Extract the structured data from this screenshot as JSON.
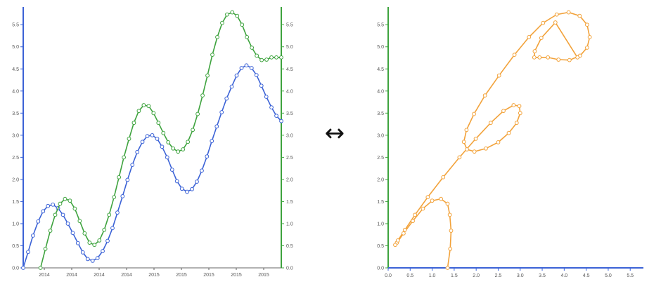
{
  "colors": {
    "blue": "#3b62d6",
    "green": "#3ea33e",
    "orange": "#f2a23a",
    "tick_text": "#555555",
    "marker_fill": "#ffffff",
    "arrow": "#111111"
  },
  "arrow_glyph": "↔",
  "chart_data": [
    {
      "type": "line",
      "left_axis": {
        "color": "blue",
        "ticks": [
          "0.0",
          "0.5",
          "1.0",
          "1.5",
          "2.0",
          "2.5",
          "3.0",
          "3.5",
          "4.0",
          "4.5",
          "5.0",
          "5.5"
        ],
        "ylim": [
          0,
          5.9
        ]
      },
      "right_axis": {
        "color": "green",
        "ticks": [
          "0.0",
          "0.5",
          "1.0",
          "1.5",
          "2.0",
          "2.5",
          "3.0",
          "3.5",
          "4.0",
          "4.5",
          "5.0",
          "5.5"
        ],
        "ylim": [
          0,
          5.9
        ]
      },
      "x_tick_labels": [
        "2014",
        "2014",
        "2014",
        "2014",
        "2015",
        "2015",
        "2015",
        "2015",
        "2015"
      ],
      "xlim": [
        0,
        10
      ],
      "markers": "hollow-circle",
      "series": [
        {
          "color": "blue",
          "axis": "left",
          "x": [
            0.0,
            0.19,
            0.38,
            0.58,
            0.77,
            0.96,
            1.15,
            1.35,
            1.54,
            1.73,
            1.92,
            2.12,
            2.31,
            2.5,
            2.69,
            2.88,
            3.08,
            3.27,
            3.46,
            3.65,
            3.85,
            4.04,
            4.23,
            4.42,
            4.62,
            4.81,
            5.0,
            5.19,
            5.38,
            5.58,
            5.77,
            5.96,
            6.15,
            6.35,
            6.54,
            6.73,
            6.92,
            7.12,
            7.31,
            7.5,
            7.69,
            7.88,
            8.08,
            8.27,
            8.46,
            8.65,
            8.85,
            9.04,
            9.23,
            9.42,
            9.62,
            9.81,
            10.0
          ],
          "y": [
            0.0,
            0.36,
            0.73,
            1.05,
            1.28,
            1.4,
            1.43,
            1.35,
            1.2,
            1.0,
            0.79,
            0.56,
            0.35,
            0.2,
            0.16,
            0.22,
            0.38,
            0.61,
            0.9,
            1.25,
            1.62,
            1.99,
            2.33,
            2.62,
            2.85,
            2.98,
            3.0,
            2.92,
            2.74,
            2.5,
            2.22,
            1.96,
            1.79,
            1.72,
            1.78,
            1.95,
            2.2,
            2.52,
            2.87,
            3.2,
            3.52,
            3.83,
            4.1,
            4.35,
            4.52,
            4.58,
            4.52,
            4.36,
            4.12,
            3.87,
            3.63,
            3.44,
            3.32
          ]
        },
        {
          "color": "green",
          "axis": "right",
          "x": [
            0.67,
            0.86,
            1.05,
            1.24,
            1.43,
            1.62,
            1.81,
            2.0,
            2.19,
            2.38,
            2.57,
            2.76,
            2.95,
            3.14,
            3.33,
            3.52,
            3.71,
            3.9,
            4.1,
            4.29,
            4.48,
            4.67,
            4.86,
            5.05,
            5.24,
            5.43,
            5.62,
            5.81,
            6.0,
            6.19,
            6.38,
            6.57,
            6.76,
            6.95,
            7.14,
            7.33,
            7.52,
            7.71,
            7.9,
            8.1,
            8.29,
            8.48,
            8.67,
            8.86,
            9.05,
            9.24,
            9.43,
            9.62,
            9.81,
            10.0
          ],
          "y": [
            0.0,
            0.43,
            0.84,
            1.2,
            1.45,
            1.56,
            1.52,
            1.34,
            1.06,
            0.78,
            0.57,
            0.52,
            0.62,
            0.86,
            1.2,
            1.6,
            2.05,
            2.5,
            2.92,
            3.28,
            3.55,
            3.68,
            3.66,
            3.5,
            3.28,
            3.05,
            2.84,
            2.7,
            2.63,
            2.68,
            2.85,
            3.12,
            3.48,
            3.9,
            4.35,
            4.82,
            5.22,
            5.54,
            5.73,
            5.78,
            5.7,
            5.5,
            5.22,
            4.98,
            4.8,
            4.7,
            4.71,
            4.76,
            4.76,
            4.76
          ]
        }
      ]
    },
    {
      "type": "line",
      "xlim": [
        0,
        5.8
      ],
      "ylim": [
        0,
        5.9
      ],
      "x_ticks": [
        "0.0",
        "0.5",
        "1.0",
        "1.5",
        "2.0",
        "2.5",
        "3.0",
        "3.5",
        "4.0",
        "4.5",
        "5.0",
        "5.5"
      ],
      "y_ticks": [
        "0.0",
        "0.5",
        "1.0",
        "1.5",
        "2.0",
        "2.5",
        "3.0",
        "3.5",
        "4.0",
        "4.5",
        "5.0",
        "5.5"
      ],
      "x_axis_color": "blue",
      "y_axis_color": "green",
      "markers": "hollow-circle",
      "series": [
        {
          "color": "orange",
          "x": [
            1.35,
            1.41,
            1.43,
            1.4,
            1.35,
            1.2,
            1.0,
            0.79,
            0.56,
            0.35,
            0.2,
            0.16,
            0.22,
            0.38,
            0.61,
            0.9,
            1.25,
            1.62,
            1.99,
            2.33,
            2.62,
            2.85,
            2.98,
            3.0,
            2.92,
            2.74,
            2.5,
            2.22,
            1.96,
            1.79,
            1.72,
            1.78,
            1.95,
            2.2,
            2.52,
            2.87,
            3.2,
            3.52,
            3.83,
            4.1,
            4.35,
            4.52,
            4.58,
            4.52,
            4.36,
            4.12,
            3.87,
            3.63,
            3.44,
            3.32,
            3.33,
            3.48,
            3.8,
            4.3
          ],
          "y": [
            0.0,
            0.43,
            0.84,
            1.2,
            1.45,
            1.56,
            1.52,
            1.34,
            1.06,
            0.78,
            0.57,
            0.52,
            0.62,
            0.86,
            1.2,
            1.6,
            2.05,
            2.5,
            2.92,
            3.28,
            3.55,
            3.68,
            3.66,
            3.5,
            3.28,
            3.05,
            2.84,
            2.7,
            2.63,
            2.68,
            2.85,
            3.12,
            3.48,
            3.9,
            4.35,
            4.82,
            5.22,
            5.54,
            5.73,
            5.78,
            5.7,
            5.5,
            5.22,
            4.98,
            4.8,
            4.7,
            4.71,
            4.76,
            4.76,
            4.76,
            4.9,
            5.2,
            5.55,
            4.76
          ]
        }
      ]
    }
  ]
}
